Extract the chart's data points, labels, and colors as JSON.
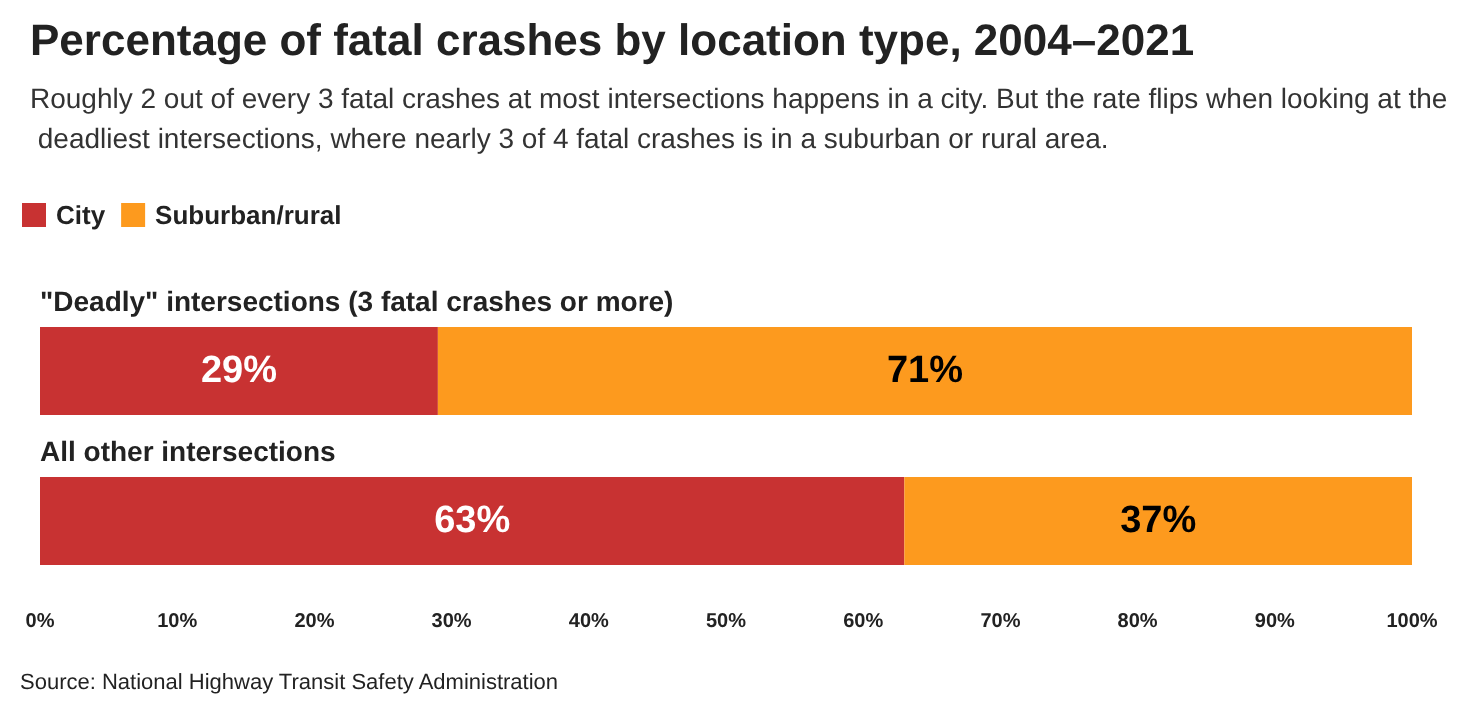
{
  "chart_data": {
    "type": "bar",
    "orientation": "horizontal",
    "stacked": true,
    "title": "Percentage of fatal crashes by location type, 2004–2021",
    "subtitle": "Roughly 2 out of every 3 fatal crashes at most intersections happens in a city. But the rate flips when looking at the deadliest intersections, where nearly 3 of 4 fatal crashes is in a suburban or rural area.",
    "categories": [
      "\"Deadly\" intersections (3 fatal crashes or more)",
      "All other intersections"
    ],
    "series": [
      {
        "name": "City",
        "color": "#c83232",
        "values": [
          29,
          63
        ],
        "value_labels": [
          "29%",
          "63%"
        ]
      },
      {
        "name": "Suburban/rural",
        "color": "#fd9a1e",
        "values": [
          71,
          37
        ],
        "value_labels": [
          "71%",
          "37%"
        ]
      }
    ],
    "xlim": [
      0,
      100
    ],
    "xticks": [
      {
        "value": 0,
        "label": "0%"
      },
      {
        "value": 10,
        "label": "10%"
      },
      {
        "value": 20,
        "label": "20%"
      },
      {
        "value": 30,
        "label": "30%"
      },
      {
        "value": 40,
        "label": "40%"
      },
      {
        "value": 50,
        "label": "50%"
      },
      {
        "value": 60,
        "label": "60%"
      },
      {
        "value": 70,
        "label": "70%"
      },
      {
        "value": 80,
        "label": "80%"
      },
      {
        "value": 90,
        "label": "90%"
      },
      {
        "value": 100,
        "label": "100%"
      }
    ],
    "grid": false,
    "legend": "top left",
    "annotations": [
      "Source: National Highway Transit Safety Administration"
    ]
  }
}
